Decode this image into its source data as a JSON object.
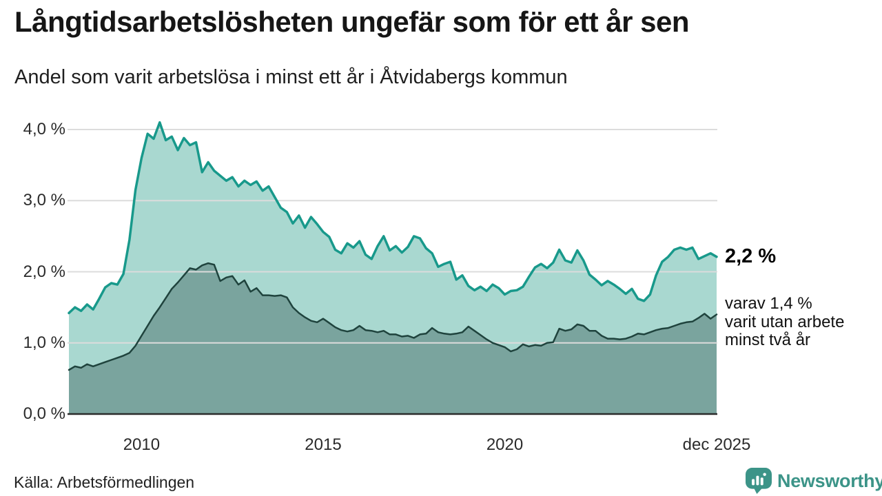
{
  "header": {
    "title": "Långtidsarbetslösheten ungefär som för ett år sen",
    "subtitle": "Andel som varit arbetslösa i minst ett år i Åtvidabergs kommun"
  },
  "chart_data": {
    "type": "area",
    "title": "Långtidsarbetslösheten ungefär som för ett år sen",
    "subtitle": "Andel som varit arbetslösa i minst ett år i Åtvidabergs kommun",
    "unit": "%",
    "x_start_year": 2008,
    "points_per_year": 6,
    "x_end_label": "dec 2025",
    "ylim": [
      0,
      4.3
    ],
    "grid": true,
    "legend": "none",
    "y_ticks": [
      {
        "label": "0,0 %",
        "value": 0
      },
      {
        "label": "1,0 %",
        "value": 1
      },
      {
        "label": "2,0 %",
        "value": 2
      },
      {
        "label": "3,0 %",
        "value": 3
      },
      {
        "label": "4,0 %",
        "value": 4
      }
    ],
    "x_ticks": [
      {
        "label": "2010",
        "year": 2010.0
      },
      {
        "label": "2015",
        "year": 2015.0
      },
      {
        "label": "2020",
        "year": 2020.0
      },
      {
        "label": "dec 2025",
        "year": 2025.9
      }
    ],
    "series": [
      {
        "name": "Arbetslösa minst ett år",
        "line_color": "#18998b",
        "fill_color": "#a9d8d0",
        "line_width": 3.5,
        "last_value_label": "2,2 %",
        "values": [
          1.42,
          1.5,
          1.45,
          1.54,
          1.47,
          1.62,
          1.78,
          1.84,
          1.82,
          1.97,
          2.45,
          3.15,
          3.6,
          3.94,
          3.87,
          4.1,
          3.85,
          3.9,
          3.71,
          3.88,
          3.78,
          3.82,
          3.4,
          3.54,
          3.42,
          3.35,
          3.28,
          3.33,
          3.2,
          3.28,
          3.22,
          3.27,
          3.14,
          3.2,
          3.05,
          2.9,
          2.84,
          2.68,
          2.79,
          2.62,
          2.77,
          2.67,
          2.56,
          2.49,
          2.31,
          2.26,
          2.4,
          2.34,
          2.43,
          2.24,
          2.18,
          2.36,
          2.5,
          2.3,
          2.36,
          2.27,
          2.35,
          2.5,
          2.47,
          2.33,
          2.26,
          2.07,
          2.11,
          2.14,
          1.89,
          1.95,
          1.8,
          1.74,
          1.79,
          1.73,
          1.82,
          1.77,
          1.68,
          1.73,
          1.74,
          1.79,
          1.93,
          2.06,
          2.11,
          2.05,
          2.13,
          2.31,
          2.16,
          2.13,
          2.3,
          2.16,
          1.96,
          1.89,
          1.81,
          1.87,
          1.82,
          1.76,
          1.69,
          1.76,
          1.62,
          1.59,
          1.68,
          1.95,
          2.14,
          2.21,
          2.31,
          2.34,
          2.31,
          2.34,
          2.18,
          2.22,
          2.26,
          2.21
        ]
      },
      {
        "name": "Varav utan arbete minst två år",
        "line_color": "#1f433d",
        "fill_color": "#7aa49e",
        "line_width": 2.5,
        "last_value_label": "1,4 %",
        "values": [
          0.62,
          0.67,
          0.65,
          0.7,
          0.67,
          0.7,
          0.73,
          0.76,
          0.79,
          0.82,
          0.86,
          0.96,
          1.1,
          1.24,
          1.38,
          1.5,
          1.63,
          1.76,
          1.85,
          1.95,
          2.05,
          2.03,
          2.09,
          2.12,
          2.1,
          1.87,
          1.92,
          1.94,
          1.82,
          1.88,
          1.72,
          1.77,
          1.67,
          1.67,
          1.66,
          1.67,
          1.64,
          1.5,
          1.42,
          1.36,
          1.31,
          1.29,
          1.34,
          1.28,
          1.22,
          1.18,
          1.16,
          1.18,
          1.24,
          1.18,
          1.17,
          1.15,
          1.17,
          1.12,
          1.12,
          1.09,
          1.1,
          1.07,
          1.12,
          1.13,
          1.21,
          1.15,
          1.13,
          1.12,
          1.13,
          1.15,
          1.23,
          1.17,
          1.11,
          1.05,
          1.0,
          0.97,
          0.94,
          0.88,
          0.91,
          0.98,
          0.95,
          0.97,
          0.96,
          1.0,
          1.01,
          1.2,
          1.17,
          1.19,
          1.26,
          1.24,
          1.17,
          1.17,
          1.1,
          1.06,
          1.06,
          1.05,
          1.06,
          1.09,
          1.13,
          1.12,
          1.15,
          1.18,
          1.2,
          1.21,
          1.24,
          1.27,
          1.29,
          1.3,
          1.35,
          1.41,
          1.34,
          1.4
        ]
      }
    ],
    "annotations": {
      "primary": "2,2 %",
      "secondary": "varav 1,4 %\nvarit utan arbete\nminst två år"
    },
    "colors": {
      "grid": "#dcdcdc",
      "axis": "#2b2b2b"
    }
  },
  "footer": {
    "source": "Källa: Arbetsförmedlingen",
    "brand": "Newsworthy",
    "brand_color": "#3c9488"
  }
}
